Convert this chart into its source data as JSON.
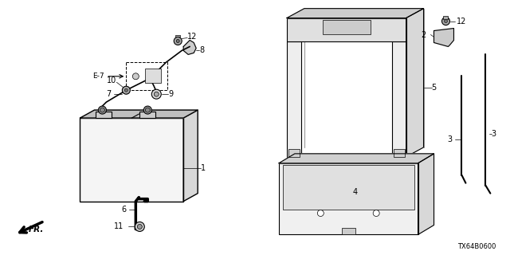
{
  "bg_color": "#ffffff",
  "line_color": "#000000",
  "fig_width": 6.4,
  "fig_height": 3.2,
  "dpi": 100,
  "diagram_code": "TX64B0600"
}
